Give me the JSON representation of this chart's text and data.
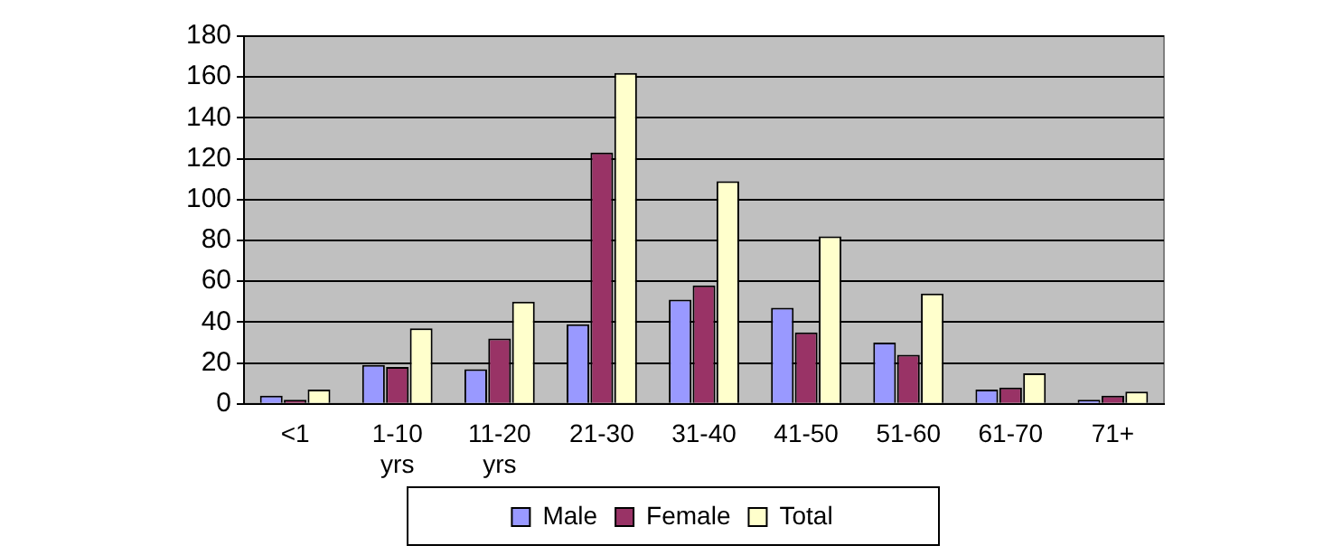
{
  "chart_data": {
    "type": "bar",
    "categories": [
      "<1",
      "1-10 yrs",
      "11-20 yrs",
      "21-30",
      "31-40",
      "41-50",
      "51-60",
      "61-70",
      "71+"
    ],
    "series": [
      {
        "name": "Male",
        "color": "#9999ff",
        "values": [
          4,
          19,
          17,
          39,
          51,
          47,
          30,
          7,
          2
        ]
      },
      {
        "name": "Female",
        "color": "#993366",
        "values": [
          2,
          18,
          32,
          123,
          58,
          35,
          24,
          8,
          4
        ]
      },
      {
        "name": "Total",
        "color": "#ffffcc",
        "values": [
          7,
          37,
          50,
          162,
          109,
          82,
          54,
          15,
          6
        ]
      }
    ],
    "ylim": [
      0,
      180
    ],
    "yticks": [
      0,
      20,
      40,
      60,
      80,
      100,
      120,
      140,
      160,
      180
    ],
    "grid": "y",
    "legend": "bottom"
  }
}
